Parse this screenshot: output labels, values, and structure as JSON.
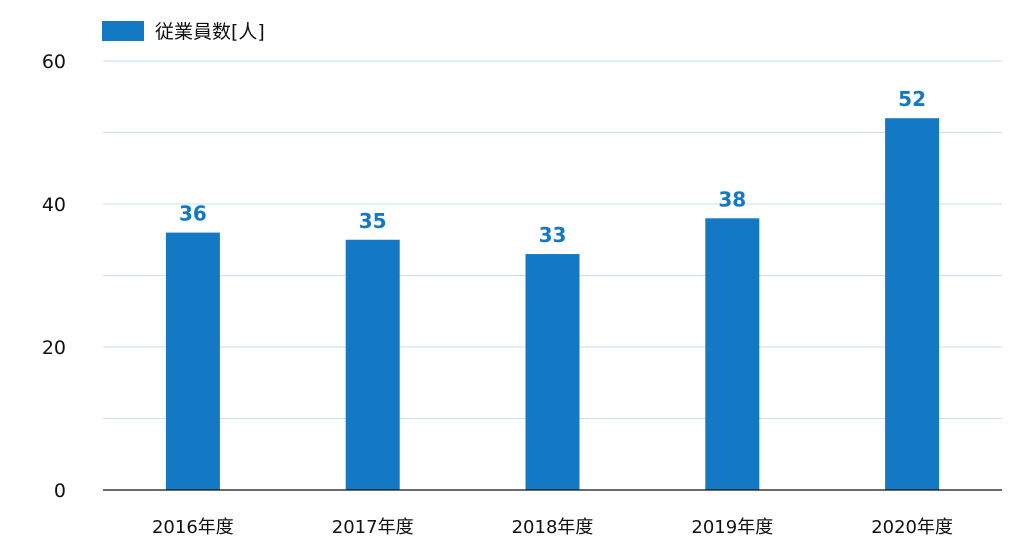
{
  "colors": {
    "bar": "#1479c4",
    "value_label": "#1479c4",
    "grid": "#c9dff0",
    "axis": "#111111",
    "text": "#111111"
  },
  "chart_data": {
    "type": "bar",
    "categories": [
      "2016年度",
      "2017年度",
      "2018年度",
      "2019年度",
      "2020年度"
    ],
    "series": [
      {
        "name": "従業員数[人]",
        "values": [
          36,
          35,
          33,
          38,
          52
        ]
      }
    ],
    "data_labels": [
      "36",
      "35",
      "33",
      "38",
      "52"
    ],
    "yticks": [
      "0",
      "20",
      "40",
      "60"
    ],
    "ytick_values": [
      0,
      20,
      40,
      60
    ],
    "ylim": [
      0,
      60
    ],
    "minor_grid_step": 10,
    "grid": true,
    "legend_position": "top-left",
    "title": "",
    "xlabel": "",
    "ylabel": ""
  }
}
